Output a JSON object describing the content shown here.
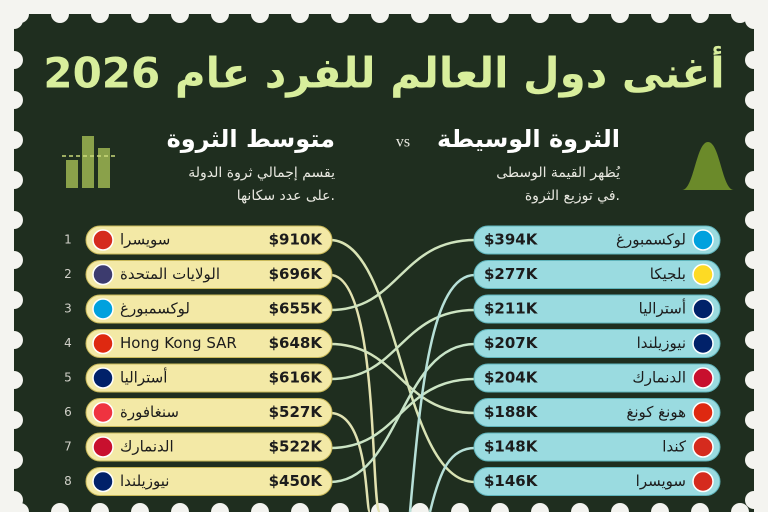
{
  "title": "أغنى دول العالم للفرد عام 2026",
  "vs": "vs",
  "left": {
    "heading": "متوسط الثروة",
    "subtitle": [
      "يقسم إجمالي ثروة الدولة",
      "على عدد سكانها."
    ],
    "rows": [
      {
        "rank": 1,
        "name": "سويسرا",
        "value": "$910K"
      },
      {
        "rank": 2,
        "name": "الولايات المتحدة",
        "value": "$696K"
      },
      {
        "rank": 3,
        "name": "لوكسمبورغ",
        "value": "$655K"
      },
      {
        "rank": 4,
        "name": "Hong Kong SAR",
        "value": "$648K"
      },
      {
        "rank": 5,
        "name": "أستراليا",
        "value": "$616K"
      },
      {
        "rank": 6,
        "name": "سنغافورة",
        "value": "$527K"
      },
      {
        "rank": 7,
        "name": "الدنمارك",
        "value": "$522K"
      },
      {
        "rank": 8,
        "name": "نيوزيلندا",
        "value": "$450K"
      }
    ]
  },
  "right": {
    "heading": "الثروة الوسيطة",
    "subtitle": [
      "يُظهر القيمة الوسطى",
      "في توزيع الثروة."
    ],
    "rows": [
      {
        "name": "لوكسمبورغ",
        "value": "$394K"
      },
      {
        "name": "بلجيكا",
        "value": "$277K"
      },
      {
        "name": "أستراليا",
        "value": "$211K"
      },
      {
        "name": "نيوزيلندا",
        "value": "$207K"
      },
      {
        "name": "الدنمارك",
        "value": "$204K"
      },
      {
        "name": "هونغ كونغ",
        "value": "$188K"
      },
      {
        "name": "كندا",
        "value": "$148K"
      },
      {
        "name": "سويسرا",
        "value": "$146K"
      }
    ]
  }
}
